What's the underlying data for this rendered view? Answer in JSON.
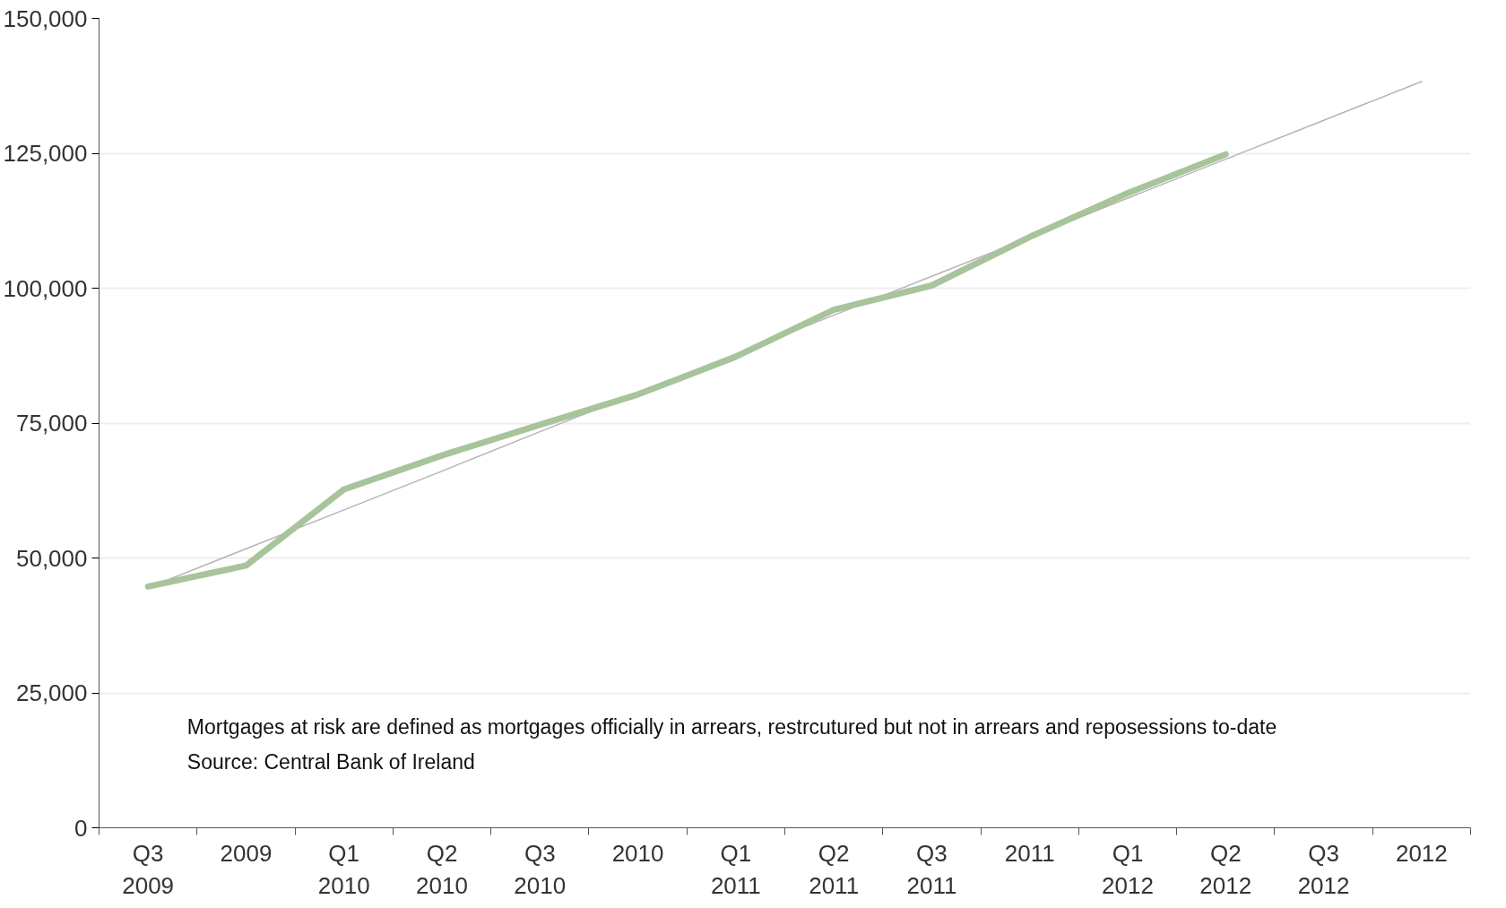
{
  "chart_data": {
    "type": "line",
    "categories": [
      "Q3\n2009",
      "2009",
      "Q1\n2010",
      "Q2\n2010",
      "Q3\n2010",
      "2010",
      "Q1\n2011",
      "Q2\n2011",
      "Q3\n2011",
      "2011",
      "Q1\n2012",
      "Q2\n2012",
      "Q3\n2012",
      "2012"
    ],
    "series": [
      {
        "color": "#a8c49a",
        "values": [
          44700,
          48600,
          62700,
          69000,
          74700,
          80300,
          87300,
          96000,
          100500,
          109500,
          117600,
          124800,
          null,
          null
        ]
      },
      {
        "color": "#b4b4b4",
        "values": [
          44500,
          51700,
          58900,
          66100,
          73400,
          80600,
          87800,
          95000,
          102200,
          109400,
          116700,
          123900,
          131100,
          138300
        ]
      }
    ],
    "ylim": [
      0,
      150000
    ],
    "yticks": [
      {
        "value": 0,
        "label": "0"
      },
      {
        "value": 25000,
        "label": "25,000"
      },
      {
        "value": 50000,
        "label": "50,000"
      },
      {
        "value": 75000,
        "label": "75,000"
      },
      {
        "value": 100000,
        "label": "100,000"
      },
      {
        "value": 125000,
        "label": "125,000"
      },
      {
        "value": 150000,
        "label": "150,000"
      }
    ],
    "grid": "y",
    "annotations": [
      "Mortgages at risk are defined as mortgages officially in arrears, restrcutured but not in arrears and reposessions to-date",
      "Source: Central Bank of Ireland"
    ]
  }
}
